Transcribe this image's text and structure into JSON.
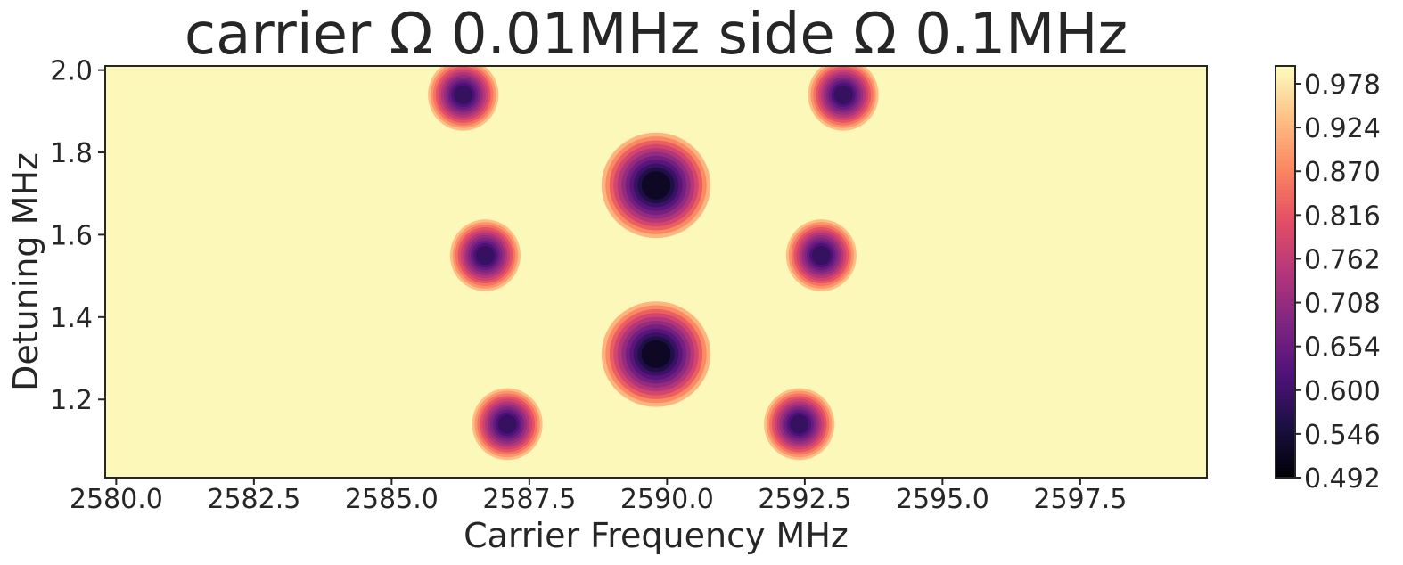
{
  "chart_data": {
    "type": "heatmap",
    "title": "carrier Ω 0.01MHz side Ω 0.1MHz",
    "xlabel": "Carrier Frequency MHz",
    "ylabel": "Detuning MHz",
    "xlim": [
      2579.8,
      2599.8
    ],
    "ylim": [
      1.01,
      2.01
    ],
    "x_ticks": [
      "2580.0",
      "2582.5",
      "2585.0",
      "2587.5",
      "2590.0",
      "2592.5",
      "2595.0",
      "2597.5"
    ],
    "x_tick_values": [
      2580.0,
      2582.5,
      2585.0,
      2587.5,
      2590.0,
      2592.5,
      2595.0,
      2597.5
    ],
    "y_ticks": [
      "1.2",
      "1.4",
      "1.6",
      "1.8",
      "2.0"
    ],
    "y_tick_values": [
      1.2,
      1.4,
      1.6,
      1.8,
      2.0
    ],
    "colorbar": {
      "colormap": "magma",
      "range": [
        0.492,
        1.0
      ],
      "ticks": [
        "0.492",
        "0.546",
        "0.600",
        "0.654",
        "0.708",
        "0.762",
        "0.816",
        "0.870",
        "0.924",
        "0.978"
      ],
      "tick_values": [
        0.492,
        0.546,
        0.6,
        0.654,
        0.708,
        0.762,
        0.816,
        0.87,
        0.924,
        0.978
      ]
    },
    "background_value": 0.995,
    "dips": [
      {
        "name": "left-sideband-top",
        "x": 2586.3,
        "y": 1.94,
        "min_value": 0.56
      },
      {
        "name": "left-sideband-mid",
        "x": 2586.7,
        "y": 1.55,
        "min_value": 0.56
      },
      {
        "name": "left-sideband-low",
        "x": 2587.1,
        "y": 1.14,
        "min_value": 0.56
      },
      {
        "name": "carrier-upper",
        "x": 2589.8,
        "y": 1.72,
        "min_value": 0.492
      },
      {
        "name": "carrier-lower",
        "x": 2589.8,
        "y": 1.31,
        "min_value": 0.492
      },
      {
        "name": "right-sideband-top",
        "x": 2593.2,
        "y": 1.94,
        "min_value": 0.56
      },
      {
        "name": "right-sideband-mid",
        "x": 2592.8,
        "y": 1.55,
        "min_value": 0.56
      },
      {
        "name": "right-sideband-low",
        "x": 2592.4,
        "y": 1.14,
        "min_value": 0.56
      }
    ],
    "grid": false
  }
}
